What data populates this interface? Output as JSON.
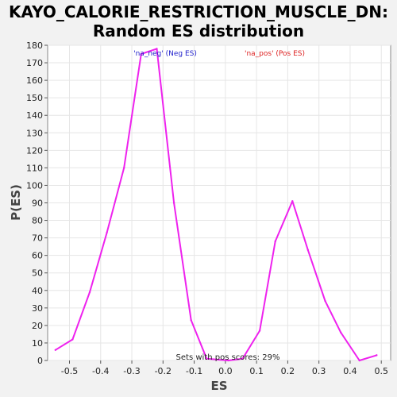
{
  "chart_data": {
    "type": "line",
    "title_lines": [
      "KAYO_CALORIE_RESTRICTION_MUSCLE_DN:",
      "Random ES distribution"
    ],
    "xlabel": "ES",
    "ylabel": "P(ES)",
    "xlim": [
      -0.57,
      0.53
    ],
    "ylim": [
      0,
      180
    ],
    "xticks": [
      "-0.5",
      "-0.4",
      "-0.3",
      "-0.2",
      "-0.1",
      "0.0",
      "0.1",
      "0.2",
      "0.3",
      "0.4",
      "0.5"
    ],
    "xtick_values": [
      -0.5,
      -0.4,
      -0.3,
      -0.2,
      -0.1,
      0.0,
      0.1,
      0.2,
      0.3,
      0.4,
      0.5
    ],
    "yticks": [
      0,
      10,
      20,
      30,
      40,
      50,
      60,
      70,
      80,
      90,
      100,
      110,
      120,
      130,
      140,
      150,
      160,
      170,
      180
    ],
    "series": [
      {
        "color": "#ee22ee",
        "x": [
          -0.545,
          -0.49,
          -0.435,
          -0.38,
          -0.325,
          -0.27,
          -0.22,
          -0.165,
          -0.11,
          -0.06,
          0.01,
          0.055,
          0.11,
          0.16,
          0.215,
          0.265,
          0.32,
          0.37,
          0.43,
          0.485
        ],
        "y": [
          6,
          12,
          39,
          73,
          110,
          175,
          178,
          90,
          23,
          1,
          0,
          1,
          17,
          68,
          91,
          63,
          34,
          16,
          0,
          3
        ]
      }
    ],
    "legend": [
      {
        "text": "'na_neg' (Neg ES)",
        "color": "#2222cc"
      },
      {
        "text": "'na_pos' (Pos ES)",
        "color": "#dd2222"
      }
    ],
    "annotation": "Sets with pos scores: 29%"
  }
}
